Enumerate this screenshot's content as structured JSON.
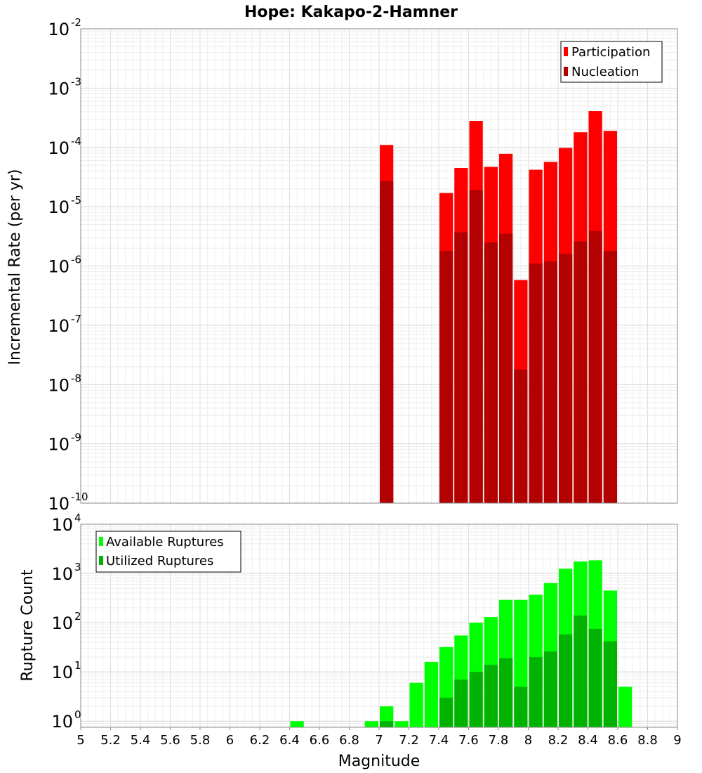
{
  "chart_data": [
    {
      "type": "bar",
      "title": "Hope: Kakapo-2-Hamner",
      "xlabel": "Magnitude",
      "ylabel": "Incremental Rate (per yr)",
      "xlim": [
        5,
        9
      ],
      "ylim": [
        1e-10,
        0.01
      ],
      "yscale": "log",
      "grid": true,
      "legend_position": "top-right",
      "bin_width": 0.1,
      "x": [
        7.05,
        7.45,
        7.55,
        7.65,
        7.75,
        7.85,
        7.95,
        8.05,
        8.15,
        8.25,
        8.35,
        8.45,
        8.55
      ],
      "series": [
        {
          "name": "Participation",
          "color": "#ff0000",
          "values": [
            0.00011,
            1.7e-05,
            4.5e-05,
            0.00028,
            4.7e-05,
            7.8e-05,
            5.8e-07,
            4.2e-05,
            5.7e-05,
            9.8e-05,
            0.00018,
            0.00041,
            0.00019
          ]
        },
        {
          "name": "Nucleation",
          "color": "#b30000",
          "values": [
            2.7e-05,
            1.8e-06,
            3.7e-06,
            1.9e-05,
            2.5e-06,
            3.5e-06,
            1.8e-08,
            1.1e-06,
            1.2e-06,
            1.6e-06,
            2.6e-06,
            3.9e-06,
            1.8e-06
          ]
        }
      ],
      "ytick_exponents": [
        -10,
        -9,
        -8,
        -7,
        -6,
        -5,
        -4,
        -3,
        -2
      ]
    },
    {
      "type": "bar",
      "xlabel": "Magnitude",
      "ylabel": "Rupture Count",
      "xlim": [
        5,
        9
      ],
      "ylim": [
        0.75,
        10000
      ],
      "yscale": "log",
      "grid": true,
      "legend_position": "top-left",
      "bin_width": 0.1,
      "x": [
        6.45,
        6.95,
        7.05,
        7.15,
        7.25,
        7.35,
        7.45,
        7.55,
        7.65,
        7.75,
        7.85,
        7.95,
        8.05,
        8.15,
        8.25,
        8.35,
        8.45,
        8.55,
        8.65
      ],
      "series": [
        {
          "name": "Available Ruptures",
          "color": "#00ff00",
          "values": [
            1,
            1,
            2,
            1,
            6,
            16,
            32,
            55,
            100,
            130,
            290,
            290,
            370,
            640,
            1250,
            1750,
            1850,
            450,
            5
          ]
        },
        {
          "name": "Utilized Ruptures",
          "color": "#00b300",
          "values": [
            0,
            0,
            1,
            0,
            0,
            0,
            3,
            7,
            10,
            14,
            19,
            5,
            20,
            26,
            58,
            140,
            75,
            42,
            0
          ]
        }
      ],
      "ytick_exponents": [
        0,
        1,
        2,
        3,
        4
      ],
      "xticks": [
        "5",
        "5.2",
        "5.4",
        "5.6",
        "5.8",
        "6",
        "6.2",
        "6.4",
        "6.6",
        "6.8",
        "7",
        "7.2",
        "7.4",
        "7.6",
        "7.8",
        "8",
        "8.2",
        "8.4",
        "8.6",
        "8.8",
        "9"
      ]
    }
  ]
}
